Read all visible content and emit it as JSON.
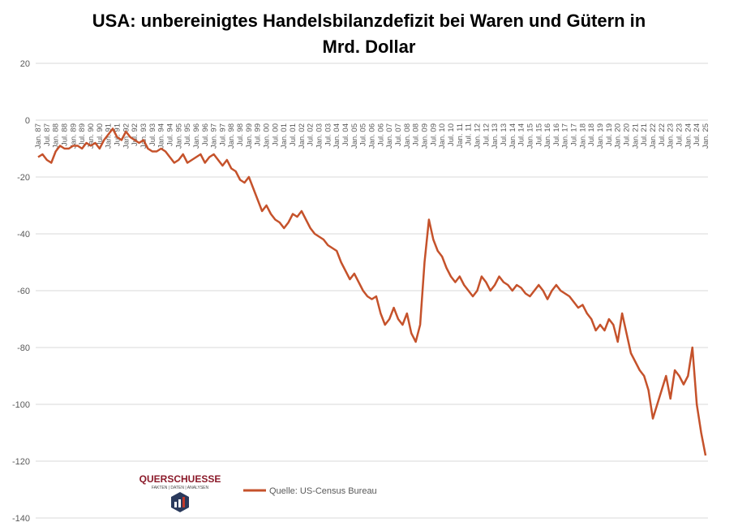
{
  "chart_data": {
    "type": "line",
    "title": "USA: unbereinigtes Handelsbilanzdefizit bei Waren und Gütern in Mrd. Dollar",
    "categories": [
      "Jan. 87",
      null,
      "Jul. 87",
      null,
      "Jan. 88",
      null,
      "Jul. 88",
      null,
      "Jan. 89",
      null,
      "Jul. 89",
      null,
      "Jan. 90",
      null,
      "Jul. 90",
      null,
      "Jan. 91",
      null,
      "Jul. 91",
      null,
      "Jan. 92",
      null,
      "Jul. 92",
      null,
      "Jan. 93",
      null,
      "Jul. 93",
      null,
      "Jan. 94",
      null,
      "Jul. 94",
      null,
      "Jan. 95",
      null,
      "Jul. 95",
      null,
      "Jan. 96",
      null,
      "Jul. 96",
      null,
      "Jan. 97",
      null,
      "Jul. 97",
      null,
      "Jan. 98",
      null,
      "Jul. 98",
      null,
      "Jan. 99",
      null,
      "Jul. 99",
      null,
      "Jan. 00",
      null,
      "Jul. 00",
      null,
      "Jan. 01",
      null,
      "Jul. 01",
      null,
      "Jan. 02",
      null,
      "Jul. 02",
      null,
      "Jan. 03",
      null,
      "Jul. 03",
      null,
      "Jan. 04",
      null,
      "Jul. 04",
      null,
      "Jan. 05",
      null,
      "Jul. 05",
      null,
      "Jan. 06",
      null,
      "Jul. 06",
      null,
      "Jan. 07",
      null,
      "Jul. 07",
      null,
      "Jan. 08",
      null,
      "Jul. 08",
      null,
      "Jan. 09",
      null,
      "Jul. 09",
      null,
      "Jan. 10",
      null,
      "Jul. 10",
      null,
      "Jan. 11",
      null,
      "Jul. 11",
      null,
      "Jan. 12",
      null,
      "Jul. 12",
      null,
      "Jan. 13",
      null,
      "Jul. 13",
      null,
      "Jan. 14",
      null,
      "Jul. 14",
      null,
      "Jan. 15",
      null,
      "Jul. 15",
      null,
      "Jan. 16",
      null,
      "Jul. 16",
      null,
      "Jan. 17",
      null,
      "Jul. 17",
      null,
      "Jan. 18",
      null,
      "Jul. 18",
      null,
      "Jan. 19",
      null,
      "Jul. 19",
      null,
      "Jan. 20",
      null,
      "Jul. 20",
      null,
      "Jan. 21",
      null,
      "Jul. 21",
      null,
      "Jan. 22",
      null,
      "Jul. 22",
      null,
      "Jan. 23",
      null,
      "Jul. 23",
      null,
      "Jan. 24",
      null,
      "Jul. 24",
      null,
      "Jan. 25"
    ],
    "series": [
      {
        "name": "Quelle: US-Census Bureau",
        "color": "#c5522b",
        "values": [
          -13,
          -12,
          -14,
          -15,
          -11,
          -9,
          -10,
          -10,
          -9,
          -9,
          -10,
          -8,
          -9,
          -8,
          -10,
          -7,
          -5,
          -3,
          -6,
          -7,
          -4,
          -6,
          -7,
          -8,
          -7,
          -10,
          -11,
          -11,
          -10,
          -11,
          -13,
          -15,
          -14,
          -12,
          -15,
          -14,
          -13,
          -12,
          -15,
          -13,
          -12,
          -14,
          -16,
          -14,
          -17,
          -18,
          -21,
          -22,
          -20,
          -24,
          -28,
          -32,
          -30,
          -33,
          -35,
          -36,
          -38,
          -36,
          -33,
          -34,
          -32,
          -35,
          -38,
          -40,
          -41,
          -42,
          -44,
          -45,
          -46,
          -50,
          -53,
          -56,
          -54,
          -57,
          -60,
          -62,
          -63,
          -62,
          -68,
          -72,
          -70,
          -66,
          -70,
          -72,
          -68,
          -75,
          -78,
          -72,
          -50,
          -35,
          -42,
          -46,
          -48,
          -52,
          -55,
          -57,
          -55,
          -58,
          -60,
          -62,
          -60,
          -55,
          -57,
          -60,
          -58,
          -55,
          -57,
          -58,
          -60,
          -58,
          -59,
          -61,
          -62,
          -60,
          -58,
          -60,
          -63,
          -60,
          -58,
          -60,
          -61,
          -62,
          -64,
          -66,
          -65,
          -68,
          -70,
          -74,
          -72,
          -74,
          -70,
          -72,
          -78,
          -68,
          -75,
          -82,
          -85,
          -88,
          -90,
          -95,
          -105,
          -100,
          -95,
          -90,
          -98,
          -88,
          -90,
          -93,
          -90,
          -80,
          -100,
          -110,
          -118
        ]
      }
    ],
    "ylim": [
      -140,
      20
    ],
    "yticks": [
      20,
      0,
      -20,
      -40,
      -60,
      -80,
      -100,
      -120,
      -140
    ],
    "grid": true
  },
  "logo": {
    "title": "QUERSCHUESSE",
    "tagline": "FAKTEN | DATEN | ANALYSEN"
  }
}
